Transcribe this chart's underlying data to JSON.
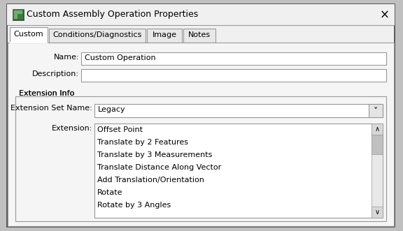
{
  "title": "Custom Assembly Operation Properties",
  "tabs": [
    "Custom",
    "Conditions/Diagnostics",
    "Image",
    "Notes"
  ],
  "name_label": "Name:",
  "name_value": "Custom Operation",
  "description_label": "Description:",
  "extension_info_label": "Extension Info",
  "extension_set_name_label": "Extension Set Name:",
  "extension_set_name_value": "Legacy",
  "extension_label": "Extension:",
  "extension_items": [
    "Offset Point",
    "Translate by 2 Features",
    "Translate by 3 Measurements",
    "Translate Distance Along Vector",
    "Add Translation/Orientation",
    "Rotate",
    "Rotate by 3 Angles"
  ],
  "outer_bg": "#c0c0c0",
  "dialog_bg": "#f0f0f0",
  "content_bg": "#f5f5f5",
  "white": "#ffffff",
  "border_dark": "#444444",
  "border_mid": "#999999",
  "border_light": "#cccccc",
  "text_color": "#000000",
  "tab_active_bg": "#ffffff",
  "tab_inactive_bg": "#e8e8e8",
  "scrollbar_track": "#e8e8e8",
  "scrollbar_thumb": "#c0c0c0",
  "icon_green_dark": "#3a6b3e",
  "icon_green_light": "#5a9b5e",
  "icon_green_mid": "#4a8a4e"
}
